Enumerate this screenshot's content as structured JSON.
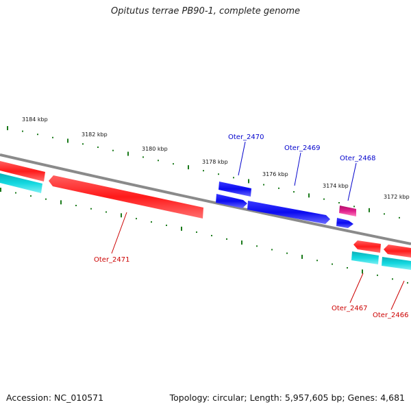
{
  "title": "Opitutus terrae PB90-1, complete genome",
  "footer": {
    "accession": "Accession: NC_010571",
    "summary": "Topology: circular; Length: 5,957,605 bp; Genes: 4,681"
  },
  "colors": {
    "backbone": "#8a8a8a",
    "tick": "#1a7a1a",
    "gene_red": "#ff1a1a",
    "gene_blue": "#0a0af0",
    "gene_magenta": "#e0208c",
    "gene_cyan": "#14d8e0",
    "label_red": "#cc0000",
    "label_blue": "#0000cc"
  },
  "ticks": [
    {
      "label": "3184 kbp"
    },
    {
      "label": "3182 kbp"
    },
    {
      "label": "3180 kbp"
    },
    {
      "label": "3178 kbp"
    },
    {
      "label": "3176 kbp"
    },
    {
      "label": "3174 kbp"
    },
    {
      "label": "3172 kbp"
    }
  ],
  "gene_labels": [
    {
      "name": "Oter_2470",
      "color": "blue"
    },
    {
      "name": "Oter_2469",
      "color": "blue"
    },
    {
      "name": "Oter_2468",
      "color": "blue"
    },
    {
      "name": "Oter_2471",
      "color": "red"
    },
    {
      "name": "Oter_2467",
      "color": "red"
    },
    {
      "name": "Oter_2466",
      "color": "red"
    }
  ]
}
